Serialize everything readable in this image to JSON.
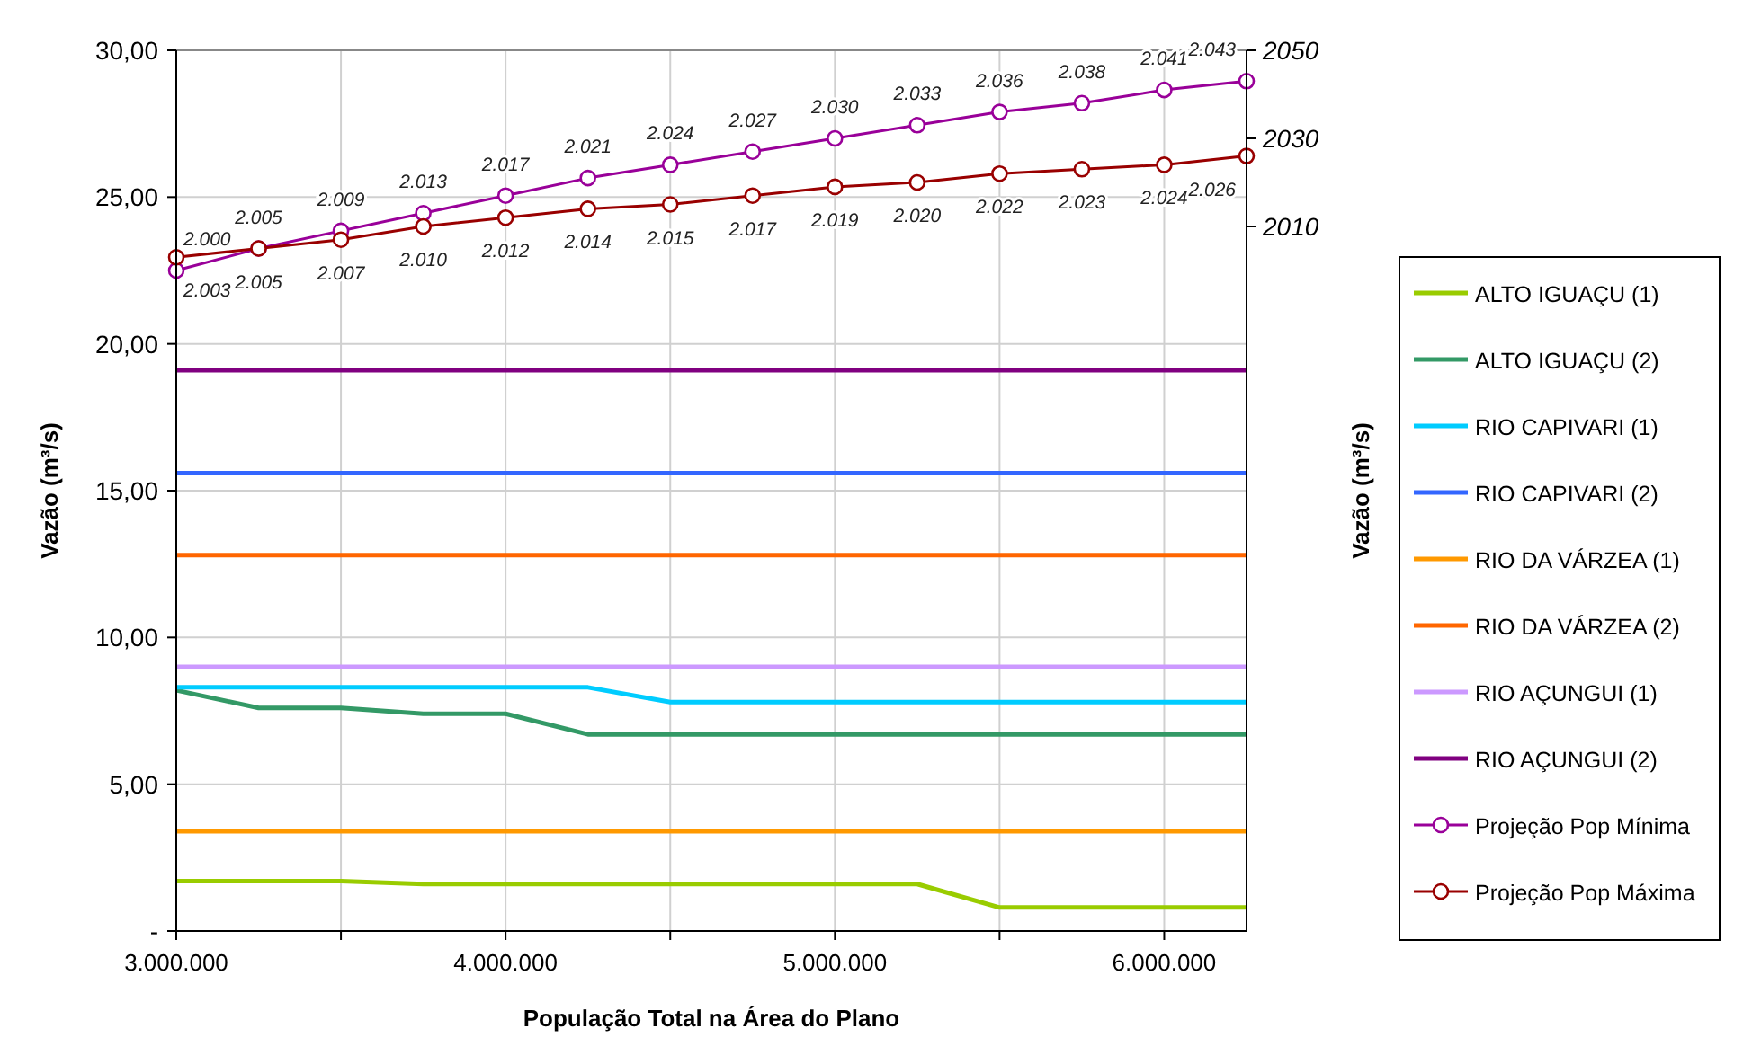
{
  "chart_data": {
    "type": "line",
    "xlabel": "População Total na Área do Plano",
    "ylabel": "Vazão (m³/s)",
    "y2label": "Vazão (m³/s)",
    "x": [
      3000000,
      3250000,
      3500000,
      3750000,
      4000000,
      4250000,
      4500000,
      4750000,
      5000000,
      5250000,
      5500000,
      5750000,
      6000000,
      6250000
    ],
    "xlim": [
      3000000,
      6250000
    ],
    "xticks": [
      {
        "value": 3000000,
        "label": "3.000.000"
      },
      {
        "value": 3500000,
        "label": null
      },
      {
        "value": 4000000,
        "label": "4.000.000"
      },
      {
        "value": 4500000,
        "label": null
      },
      {
        "value": 5000000,
        "label": "5.000.000"
      },
      {
        "value": 5500000,
        "label": null
      },
      {
        "value": 6000000,
        "label": "6.000.000"
      }
    ],
    "ylim": [
      0,
      30
    ],
    "yticks": [
      {
        "value": 0,
        "label": "-"
      },
      {
        "value": 5,
        "label": "5,00"
      },
      {
        "value": 10,
        "label": "10,00"
      },
      {
        "value": 15,
        "label": "15,00"
      },
      {
        "value": 20,
        "label": "20,00"
      },
      {
        "value": 25,
        "label": "25,00"
      },
      {
        "value": 30,
        "label": "30,00"
      }
    ],
    "y2lim": [
      1850,
      2050
    ],
    "y2ticks": [
      2010,
      2030,
      2050
    ],
    "grid": true,
    "legend": "right",
    "series": [
      {
        "name": "ALTO IGUAÇU (1)",
        "color": "#99cc00",
        "marker": "none",
        "values": [
          1.7,
          1.7,
          1.7,
          1.6,
          1.6,
          1.6,
          1.6,
          1.6,
          1.6,
          1.6,
          0.8,
          0.8,
          0.8,
          0.8
        ]
      },
      {
        "name": "ALTO IGUAÇU (2)",
        "color": "#339966",
        "marker": "none",
        "values": [
          8.2,
          7.6,
          7.6,
          7.4,
          7.4,
          6.7,
          6.7,
          6.7,
          6.7,
          6.7,
          6.7,
          6.7,
          6.7,
          6.7
        ]
      },
      {
        "name": "RIO CAPIVARI (1)",
        "color": "#00ccff",
        "marker": "none",
        "values": [
          8.3,
          8.3,
          8.3,
          8.3,
          8.3,
          8.3,
          7.8,
          7.8,
          7.8,
          7.8,
          7.8,
          7.8,
          7.8,
          7.8
        ]
      },
      {
        "name": "RIO CAPIVARI (2)",
        "color": "#3366ff",
        "marker": "none",
        "values": [
          15.6,
          15.6,
          15.6,
          15.6,
          15.6,
          15.6,
          15.6,
          15.6,
          15.6,
          15.6,
          15.6,
          15.6,
          15.6,
          15.6
        ]
      },
      {
        "name": "RIO DA VÁRZEA (1)",
        "color": "#ff9900",
        "marker": "none",
        "values": [
          3.4,
          3.4,
          3.4,
          3.4,
          3.4,
          3.4,
          3.4,
          3.4,
          3.4,
          3.4,
          3.4,
          3.4,
          3.4,
          3.4
        ]
      },
      {
        "name": "RIO DA VÁRZEA (2)",
        "color": "#ff6600",
        "marker": "none",
        "values": [
          12.8,
          12.8,
          12.8,
          12.8,
          12.8,
          12.8,
          12.8,
          12.8,
          12.8,
          12.8,
          12.8,
          12.8,
          12.8,
          12.8
        ]
      },
      {
        "name": "RIO AÇUNGUI (1)",
        "color": "#cc99ff",
        "marker": "none",
        "values": [
          9.0,
          9.0,
          9.0,
          9.0,
          9.0,
          9.0,
          9.0,
          9.0,
          9.0,
          9.0,
          9.0,
          9.0,
          9.0,
          9.0
        ]
      },
      {
        "name": "RIO AÇUNGUI (2)",
        "color": "#800080",
        "marker": "none",
        "values": [
          19.1,
          19.1,
          19.1,
          19.1,
          19.1,
          19.1,
          19.1,
          19.1,
          19.1,
          19.1,
          19.1,
          19.1,
          19.1,
          19.1
        ]
      },
      {
        "name": "Projeção Pop Mínima",
        "color": "#990099",
        "marker": "circle",
        "axis": "y2",
        "values": [
          2000,
          2005,
          2009,
          2013,
          2017,
          2021,
          2024,
          2027,
          2030,
          2033,
          2036,
          2038,
          2041,
          2043
        ],
        "value_labels": [
          "2.000",
          "2.005",
          "2.009",
          "2.013",
          "2.017",
          "2.021",
          "2.024",
          "2.027",
          "2.030",
          "2.033",
          "2.036",
          "2.038",
          "2.041",
          "2.043"
        ]
      },
      {
        "name": "Projeção Pop Máxima",
        "color": "#990000",
        "marker": "circle",
        "axis": "y2",
        "values": [
          2003,
          2005,
          2007,
          2010,
          2012,
          2014,
          2015,
          2017,
          2019,
          2020,
          2022,
          2023,
          2024,
          2026
        ],
        "value_labels": [
          "2.003",
          "2.005",
          "2.007",
          "2.010",
          "2.012",
          "2.014",
          "2.015",
          "2.017",
          "2.019",
          "2.020",
          "2.022",
          "2.023",
          "2.024",
          "2.026"
        ]
      }
    ]
  }
}
